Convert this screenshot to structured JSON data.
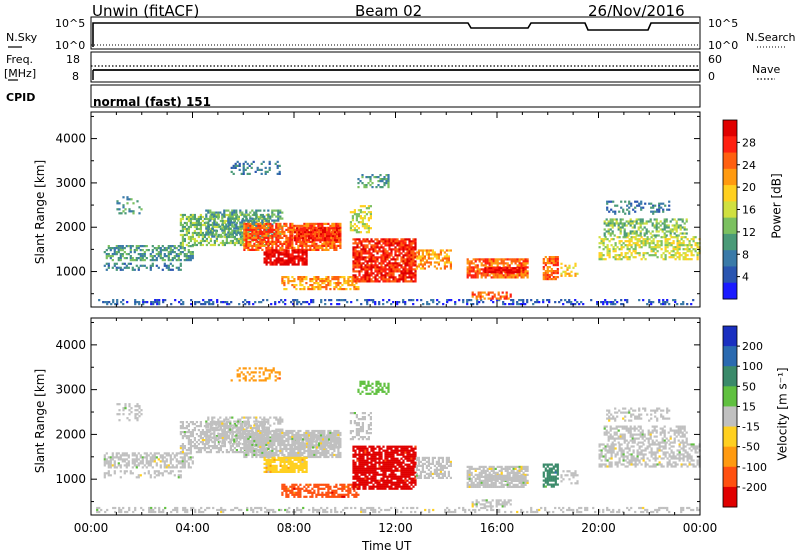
{
  "header": {
    "title": "Unwin (fitACF)",
    "beam": "Beam 02",
    "date": "26/Nov/2016"
  },
  "panels": {
    "nsky_label": "N.Sky",
    "nsky_ticks": [
      "10^5",
      "10^0"
    ],
    "nsearch_label": "N.Search",
    "nsearch_ticks": [
      "10^5",
      "10^0"
    ],
    "freq_label": "Freq.",
    "freq_unit": "[MHz]",
    "freq_ticks": [
      "18",
      "8"
    ],
    "nave_label": "Nave",
    "nave_ticks": [
      "60",
      "0"
    ],
    "cpid_label": "CPID",
    "cpid_value": "normal (fast) 151"
  },
  "chart_data": [
    {
      "type": "heatmap",
      "name": "power",
      "ylabel": "Slant Range [km]",
      "xlabel": "Time UT",
      "x_ticks": [
        "00:00",
        "04:00",
        "08:00",
        "12:00",
        "16:00",
        "20:00",
        "00:00"
      ],
      "y_ticks": [
        1000,
        2000,
        3000,
        4000
      ],
      "ylim": [
        200,
        4600
      ],
      "xlim_hours": [
        0,
        24
      ],
      "colorbar": {
        "label": "Power [dB]",
        "ticks": [
          "4",
          "8",
          "12",
          "16",
          "20",
          "24",
          "28"
        ],
        "colors": [
          "#1a1aff",
          "#2a55b0",
          "#3a7aa8",
          "#4a9a78",
          "#7bc060",
          "#d0e040",
          "#ffd020",
          "#ff9a10",
          "#ff6010",
          "#ff2010",
          "#e00000"
        ]
      }
    },
    {
      "type": "heatmap",
      "name": "velocity",
      "ylabel": "Slant Range [km]",
      "xlabel": "Time UT",
      "x_ticks": [
        "00:00",
        "04:00",
        "08:00",
        "12:00",
        "16:00",
        "20:00",
        "00:00"
      ],
      "y_ticks": [
        1000,
        2000,
        3000,
        4000
      ],
      "ylim": [
        200,
        4600
      ],
      "xlim_hours": [
        0,
        24
      ],
      "colorbar": {
        "label": "Velocity [m s⁻¹]",
        "ticks": [
          "200",
          "100",
          "50",
          "15",
          "-15",
          "-50",
          "-100",
          "-200"
        ],
        "colors": [
          "#1a30c0",
          "#2a6ab0",
          "#3a8a6a",
          "#60c040",
          "#c0c0c0",
          "#ffd020",
          "#ff9a10",
          "#ff5010",
          "#e00000"
        ]
      }
    }
  ]
}
